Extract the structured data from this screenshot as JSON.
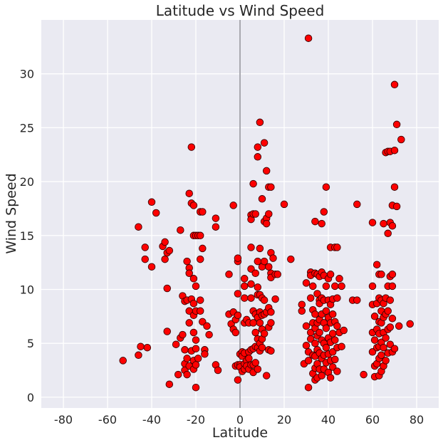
{
  "chart_data": {
    "type": "scatter",
    "title": "Latitude vs Wind Speed",
    "xlabel": "Latitude",
    "ylabel": "Wind Speed",
    "xlim": [
      -90,
      90
    ],
    "ylim": [
      -1,
      35
    ],
    "xticks": [
      "-80",
      "-60",
      "-40",
      "-20",
      "0",
      "20",
      "40",
      "60",
      "80"
    ],
    "yticks": [
      "0",
      "5",
      "10",
      "15",
      "20",
      "25",
      "30"
    ],
    "grid": true,
    "vertical_reference_line_x": 0,
    "colors": {
      "background": "#EAEAF2",
      "grid": "#FFFFFF",
      "marker_fill": "#FF0000",
      "marker_edge": "#3A0000",
      "reference_line": "#A9A9B0"
    },
    "points": [
      [
        -53,
        3.4
      ],
      [
        -46,
        15.8
      ],
      [
        -46,
        3.9
      ],
      [
        -45,
        4.7
      ],
      [
        -43,
        13.9
      ],
      [
        -43,
        12.8
      ],
      [
        -42,
        4.6
      ],
      [
        -40,
        18.1
      ],
      [
        -40,
        12.1
      ],
      [
        -38,
        17.1
      ],
      [
        -35,
        14.0
      ],
      [
        -34,
        14.4
      ],
      [
        -34,
        12.8
      ],
      [
        -33,
        13.4
      ],
      [
        -33,
        10.1
      ],
      [
        -32,
        13.6
      ],
      [
        -33,
        6.1
      ],
      [
        -32,
        1.2
      ],
      [
        -29,
        4.9
      ],
      [
        -28,
        2.1
      ],
      [
        -27,
        15.5
      ],
      [
        -27,
        5.5
      ],
      [
        -26,
        9.4
      ],
      [
        -26,
        5.8
      ],
      [
        -25,
        8.9
      ],
      [
        -25,
        4.4
      ],
      [
        -25,
        3.1
      ],
      [
        -25,
        2.5
      ],
      [
        -24,
        12.6
      ],
      [
        -24,
        9.0
      ],
      [
        -24,
        3.6
      ],
      [
        -24,
        2.1
      ],
      [
        -23,
        18.9
      ],
      [
        -23,
        12.0
      ],
      [
        -23,
        11.5
      ],
      [
        -23,
        8.0
      ],
      [
        -23,
        6.9
      ],
      [
        -23,
        2.9
      ],
      [
        -22,
        23.2
      ],
      [
        -22,
        18.0
      ],
      [
        -22,
        9.1
      ],
      [
        -22,
        4.3
      ],
      [
        -21,
        17.8
      ],
      [
        -21,
        15.0
      ],
      [
        -21,
        11.0
      ],
      [
        -21,
        8.7
      ],
      [
        -21,
        7.6
      ],
      [
        -21,
        6.0
      ],
      [
        -21,
        3.4
      ],
      [
        -21,
        2.6
      ],
      [
        -20,
        15.0
      ],
      [
        -20,
        10.3
      ],
      [
        -20,
        8.0
      ],
      [
        -20,
        5.3
      ],
      [
        -20,
        4.5
      ],
      [
        -20,
        3.0
      ],
      [
        -20,
        0.9
      ],
      [
        -19,
        15.0
      ],
      [
        -19,
        3.6
      ],
      [
        -18,
        17.2
      ],
      [
        -18,
        15.0
      ],
      [
        -18,
        12.8
      ],
      [
        -18,
        9.0
      ],
      [
        -18,
        8.0
      ],
      [
        -17,
        17.2
      ],
      [
        -17,
        13.8
      ],
      [
        -17,
        7.0
      ],
      [
        -16,
        4.4
      ],
      [
        -16,
        4.0
      ],
      [
        -15,
        6.6
      ],
      [
        -14,
        5.8
      ],
      [
        -11,
        16.6
      ],
      [
        -11,
        15.8
      ],
      [
        -11,
        3.0
      ],
      [
        -10,
        2.5
      ],
      [
        -5,
        11.4
      ],
      [
        -5,
        7.7
      ],
      [
        -4,
        6.8
      ],
      [
        -3,
        17.8
      ],
      [
        -3,
        7.9
      ],
      [
        -3,
        6.3
      ],
      [
        -2,
        7.2
      ],
      [
        -2,
        6.0
      ],
      [
        -2,
        2.9
      ],
      [
        -1,
        12.6
      ],
      [
        -1,
        12.9
      ],
      [
        -1,
        9.6
      ],
      [
        -1,
        7.6
      ],
      [
        -1,
        3.0
      ],
      [
        -1,
        1.6
      ],
      [
        0,
        4.0
      ],
      [
        0,
        3.0
      ],
      [
        0,
        2.8
      ],
      [
        1,
        4.2
      ],
      [
        1,
        3.8
      ],
      [
        1,
        2.4
      ],
      [
        2,
        11.0
      ],
      [
        2,
        10.3
      ],
      [
        2,
        9.2
      ],
      [
        2,
        6.9
      ],
      [
        2,
        4.1
      ],
      [
        2,
        3.1
      ],
      [
        2,
        2.6
      ],
      [
        3,
        7.2
      ],
      [
        3,
        3.4
      ],
      [
        3,
        2.9
      ],
      [
        4,
        6.9
      ],
      [
        4,
        4.2
      ],
      [
        4,
        3.6
      ],
      [
        4,
        2.6
      ],
      [
        5,
        16.9
      ],
      [
        5,
        16.5
      ],
      [
        5,
        13.9
      ],
      [
        5,
        11.9
      ],
      [
        5,
        10.5
      ],
      [
        5,
        9.2
      ],
      [
        5,
        4.4
      ],
      [
        5,
        3.0
      ],
      [
        6,
        19.8
      ],
      [
        6,
        17.0
      ],
      [
        6,
        8.0
      ],
      [
        6,
        6.9
      ],
      [
        6,
        4.5
      ],
      [
        6,
        3.0
      ],
      [
        6,
        2.3
      ],
      [
        7,
        17.0
      ],
      [
        7,
        11.5
      ],
      [
        7,
        7.7
      ],
      [
        7,
        6.0
      ],
      [
        7,
        4.7
      ],
      [
        7,
        3.2
      ],
      [
        8,
        23.2
      ],
      [
        8,
        22.3
      ],
      [
        8,
        12.6
      ],
      [
        8,
        10.2
      ],
      [
        8,
        9.5
      ],
      [
        8,
        7.4
      ],
      [
        8,
        5.4
      ],
      [
        8,
        4.6
      ],
      [
        8,
        2.6
      ],
      [
        9,
        25.5
      ],
      [
        9,
        13.8
      ],
      [
        9,
        9.5
      ],
      [
        9,
        7.9
      ],
      [
        9,
        6.9
      ],
      [
        9,
        5.0
      ],
      [
        9,
        4.3
      ],
      [
        10,
        18.4
      ],
      [
        10,
        12.1
      ],
      [
        10,
        9.2
      ],
      [
        10,
        7.6
      ],
      [
        10,
        6.3
      ],
      [
        10,
        5.4
      ],
      [
        10,
        4.6
      ],
      [
        11,
        23.6
      ],
      [
        11,
        16.3
      ],
      [
        11,
        12.6
      ],
      [
        11,
        9.0
      ],
      [
        11,
        7.7
      ],
      [
        11,
        5.9
      ],
      [
        12,
        21.0
      ],
      [
        12,
        16.6
      ],
      [
        12,
        16.1
      ],
      [
        12,
        7.9
      ],
      [
        12,
        2.0
      ],
      [
        13,
        19.5
      ],
      [
        13,
        17.0
      ],
      [
        13,
        12.1
      ],
      [
        13,
        8.3
      ],
      [
        13,
        6.5
      ],
      [
        13,
        4.4
      ],
      [
        14,
        19.5
      ],
      [
        14,
        13.4
      ],
      [
        14,
        11.5
      ],
      [
        14,
        11.1
      ],
      [
        14,
        7.9
      ],
      [
        14,
        6.9
      ],
      [
        14,
        4.3
      ],
      [
        15,
        12.9
      ],
      [
        16,
        11.4
      ],
      [
        16,
        9.1
      ],
      [
        17,
        11.4
      ],
      [
        20,
        17.9
      ],
      [
        23,
        12.8
      ],
      [
        28,
        8.0
      ],
      [
        28,
        8.6
      ],
      [
        29,
        3.1
      ],
      [
        30,
        10.6
      ],
      [
        30,
        6.6
      ],
      [
        30,
        4.8
      ],
      [
        31,
        4.2
      ],
      [
        31,
        3.4
      ],
      [
        31,
        0.9
      ],
      [
        31,
        33.3
      ],
      [
        32,
        11.6
      ],
      [
        32,
        11.3
      ],
      [
        32,
        9.2
      ],
      [
        32,
        6.0
      ],
      [
        32,
        5.4
      ],
      [
        33,
        10.3
      ],
      [
        33,
        8.1
      ],
      [
        33,
        6.9
      ],
      [
        33,
        3.9
      ],
      [
        33,
        2.2
      ],
      [
        34,
        16.3
      ],
      [
        34,
        11.5
      ],
      [
        34,
        7.7
      ],
      [
        34,
        6.4
      ],
      [
        34,
        5.0
      ],
      [
        34,
        3.8
      ],
      [
        34,
        2.7
      ],
      [
        34,
        1.6
      ],
      [
        35,
        11.4
      ],
      [
        35,
        9.6
      ],
      [
        35,
        6.9
      ],
      [
        35,
        5.7
      ],
      [
        35,
        4.4
      ],
      [
        35,
        3.1
      ],
      [
        35,
        1.8
      ],
      [
        36,
        11.2
      ],
      [
        36,
        9.0
      ],
      [
        36,
        8.7
      ],
      [
        36,
        7.2
      ],
      [
        36,
        6.0
      ],
      [
        36,
        4.1
      ],
      [
        36,
        2.6
      ],
      [
        37,
        16.1
      ],
      [
        37,
        11.6
      ],
      [
        37,
        9.2
      ],
      [
        37,
        7.7
      ],
      [
        37,
        5.3
      ],
      [
        37,
        3.6
      ],
      [
        37,
        2.0
      ],
      [
        38,
        17.2
      ],
      [
        38,
        11.3
      ],
      [
        38,
        9.0
      ],
      [
        38,
        6.9
      ],
      [
        38,
        5.0
      ],
      [
        38,
        3.9
      ],
      [
        38,
        2.6
      ],
      [
        39,
        19.5
      ],
      [
        39,
        10.3
      ],
      [
        39,
        8.0
      ],
      [
        39,
        6.4
      ],
      [
        39,
        4.6
      ],
      [
        39,
        3.2
      ],
      [
        40,
        11.0
      ],
      [
        40,
        9.0
      ],
      [
        40,
        7.4
      ],
      [
        40,
        5.5
      ],
      [
        40,
        4.0
      ],
      [
        40,
        2.3
      ],
      [
        41,
        13.9
      ],
      [
        41,
        11.4
      ],
      [
        41,
        8.6
      ],
      [
        41,
        6.9
      ],
      [
        41,
        5.1
      ],
      [
        41,
        3.4
      ],
      [
        41,
        1.8
      ],
      [
        42,
        9.1
      ],
      [
        42,
        7.7
      ],
      [
        42,
        5.9
      ],
      [
        42,
        4.2
      ],
      [
        42,
        2.8
      ],
      [
        43,
        13.9
      ],
      [
        43,
        10.3
      ],
      [
        43,
        7.0
      ],
      [
        43,
        5.3
      ],
      [
        43,
        3.5
      ],
      [
        44,
        13.9
      ],
      [
        44,
        9.2
      ],
      [
        44,
        6.6
      ],
      [
        44,
        4.6
      ],
      [
        44,
        2.4
      ],
      [
        45,
        11.0
      ],
      [
        45,
        6.0
      ],
      [
        46,
        10.3
      ],
      [
        46,
        4.7
      ],
      [
        47,
        6.2
      ],
      [
        51,
        9.0
      ],
      [
        53,
        17.9
      ],
      [
        53,
        9.0
      ],
      [
        56,
        2.1
      ],
      [
        60,
        16.2
      ],
      [
        60,
        10.3
      ],
      [
        60,
        8.6
      ],
      [
        60,
        6.0
      ],
      [
        60,
        4.2
      ],
      [
        61,
        7.5
      ],
      [
        61,
        5.3
      ],
      [
        61,
        2.9
      ],
      [
        61,
        1.9
      ],
      [
        62,
        12.3
      ],
      [
        62,
        8.7
      ],
      [
        62,
        6.3
      ],
      [
        62,
        4.6
      ],
      [
        62,
        3.1
      ],
      [
        63,
        11.4
      ],
      [
        63,
        9.2
      ],
      [
        63,
        7.0
      ],
      [
        63,
        5.9
      ],
      [
        63,
        4.7
      ],
      [
        63,
        3.6
      ],
      [
        63,
        2.0
      ],
      [
        64,
        11.4
      ],
      [
        64,
        9.0
      ],
      [
        64,
        8.0
      ],
      [
        64,
        6.9
      ],
      [
        64,
        5.1
      ],
      [
        64,
        3.9
      ],
      [
        64,
        2.4
      ],
      [
        65,
        16.1
      ],
      [
        65,
        8.7
      ],
      [
        65,
        7.4
      ],
      [
        65,
        6.0
      ],
      [
        65,
        4.6
      ],
      [
        65,
        2.9
      ],
      [
        66,
        22.7
      ],
      [
        66,
        9.2
      ],
      [
        66,
        7.7
      ],
      [
        66,
        5.5
      ],
      [
        66,
        3.4
      ],
      [
        67,
        22.8
      ],
      [
        67,
        15.2
      ],
      [
        67,
        10.3
      ],
      [
        67,
        8.0
      ],
      [
        67,
        6.3
      ],
      [
        67,
        4.1
      ],
      [
        68,
        22.8
      ],
      [
        68,
        16.2
      ],
      [
        68,
        11.2
      ],
      [
        68,
        9.0
      ],
      [
        68,
        6.5
      ],
      [
        68,
        4.9
      ],
      [
        69,
        17.8
      ],
      [
        69,
        15.9
      ],
      [
        69,
        11.4
      ],
      [
        69,
        10.3
      ],
      [
        69,
        7.3
      ],
      [
        69,
        4.2
      ],
      [
        70,
        29.0
      ],
      [
        70,
        22.9
      ],
      [
        70,
        19.5
      ],
      [
        70,
        4.5
      ],
      [
        71,
        25.3
      ],
      [
        71,
        17.7
      ],
      [
        72,
        6.6
      ],
      [
        73,
        23.9
      ],
      [
        77,
        6.8
      ]
    ]
  }
}
